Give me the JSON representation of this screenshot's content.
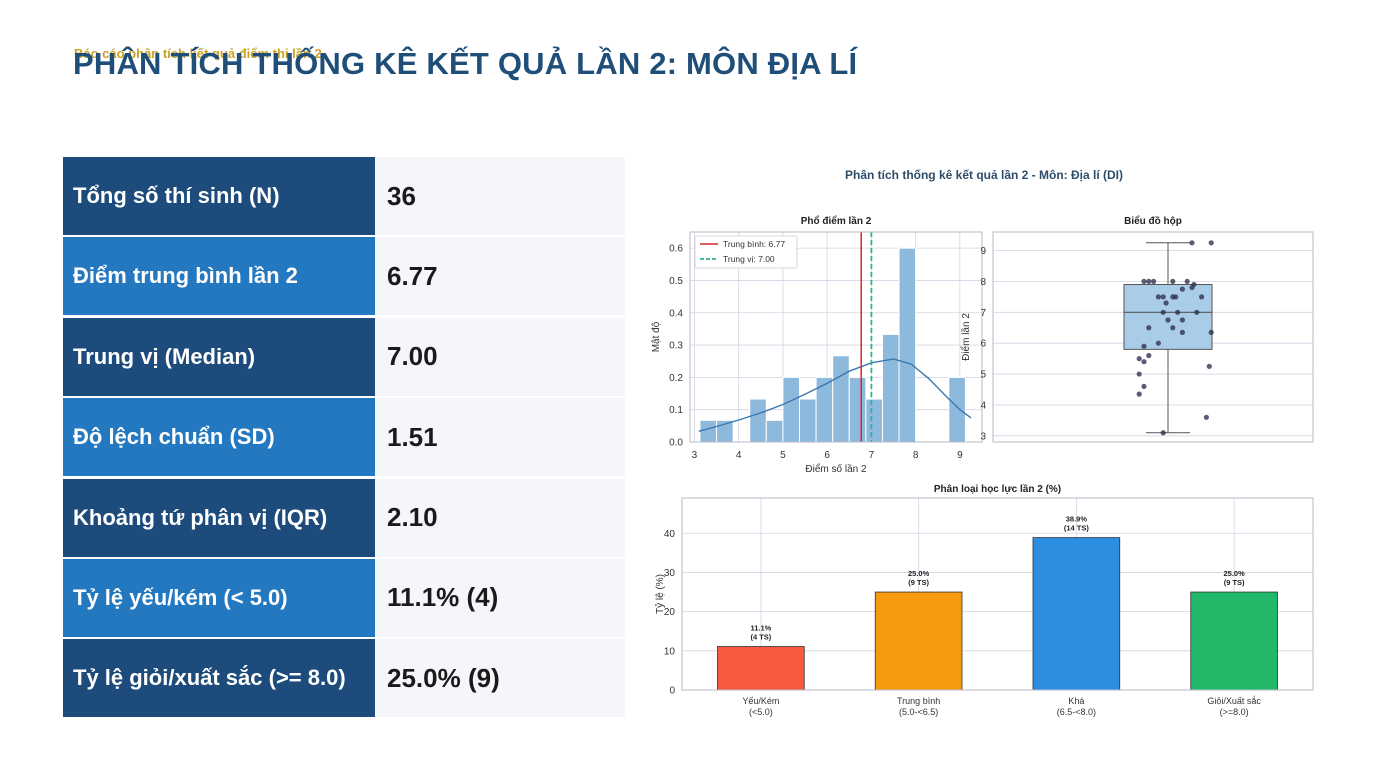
{
  "header": {
    "overtitle": "Báo cáo phân tích kết quả điểm thi lần 2",
    "title": "PHÂN TÍCH THỐNG KÊ KẾT QUẢ LẦN 2: MÔN ĐỊA LÍ"
  },
  "stats": [
    {
      "label": "Tổng số thí sinh (N)",
      "value": "36"
    },
    {
      "label": "Điểm trung bình lần 2",
      "value": "6.77"
    },
    {
      "label": "Trung vị (Median)",
      "value": "7.00"
    },
    {
      "label": "Độ lệch chuẩn (SD)",
      "value": "1.51"
    },
    {
      "label": "Khoảng tứ phân vị (IQR)",
      "value": "2.10"
    },
    {
      "label": "Tỷ lệ yếu/kém (< 5.0)",
      "value": "11.1% (4)"
    },
    {
      "label": "Tỷ lệ giỏi/xuất sắc (>= 8.0)",
      "value": "25.0% (9)"
    }
  ],
  "colors": {
    "dark_row": "#1d4c7c",
    "light_row": "#2478bf",
    "title": "#1f4e79",
    "hist": "#8db9dd",
    "kde": "#3a78b0",
    "mean": "#d62728",
    "median": "#2cb58f"
  },
  "chart_data": [
    {
      "type": "histogram",
      "figure_title": "Phân tích thống kê kết quả lần 2 - Môn: Địa lí (DI)",
      "title": "Phổ điểm lần 2",
      "xlabel": "Điểm số lần 2",
      "ylabel": "Mật độ",
      "xlim": [
        2.9,
        9.5
      ],
      "ylim": [
        0,
        0.65
      ],
      "xticks": [
        3,
        4,
        5,
        6,
        7,
        8,
        9
      ],
      "yticks": [
        0.0,
        0.1,
        0.2,
        0.3,
        0.4,
        0.5,
        0.6
      ],
      "bin_width": 0.375,
      "bins": [
        {
          "x0": 3.125,
          "d": 0.067
        },
        {
          "x0": 3.5,
          "d": 0.067
        },
        {
          "x0": 4.25,
          "d": 0.133
        },
        {
          "x0": 4.625,
          "d": 0.067
        },
        {
          "x0": 5.0,
          "d": 0.2
        },
        {
          "x0": 5.375,
          "d": 0.133
        },
        {
          "x0": 5.75,
          "d": 0.2
        },
        {
          "x0": 6.125,
          "d": 0.267
        },
        {
          "x0": 6.5,
          "d": 0.2
        },
        {
          "x0": 6.875,
          "d": 0.133
        },
        {
          "x0": 7.25,
          "d": 0.333
        },
        {
          "x0": 7.625,
          "d": 0.6
        },
        {
          "x0": 8.75,
          "d": 0.2
        }
      ],
      "kde": [
        [
          3.1,
          0.033
        ],
        [
          3.5,
          0.048
        ],
        [
          4.0,
          0.068
        ],
        [
          4.5,
          0.09
        ],
        [
          5.0,
          0.116
        ],
        [
          5.5,
          0.148
        ],
        [
          6.0,
          0.182
        ],
        [
          6.5,
          0.219
        ],
        [
          7.0,
          0.245
        ],
        [
          7.5,
          0.257
        ],
        [
          7.9,
          0.241
        ],
        [
          8.3,
          0.196
        ],
        [
          8.7,
          0.14
        ],
        [
          9.0,
          0.1
        ],
        [
          9.25,
          0.075
        ]
      ],
      "mean": 6.77,
      "median": 7.0,
      "legend": [
        "Trung bình: 6.77",
        "Trung vị: 7.00"
      ],
      "legend_position": "top-left"
    },
    {
      "type": "box",
      "title": "Biểu đồ hộp",
      "ylabel": "Điểm lần 2",
      "ylim": [
        2.8,
        9.6
      ],
      "yticks": [
        3,
        4,
        5,
        6,
        7,
        8,
        9
      ],
      "whisker_low": 3.1,
      "q1": 5.8,
      "median": 7.0,
      "q3": 7.9,
      "whisker_high": 9.25,
      "points": [
        [
          -0.25,
          8.0
        ],
        [
          -0.15,
          8.0
        ],
        [
          -0.2,
          8.0
        ],
        [
          0.05,
          8.0
        ],
        [
          0.2,
          8.0
        ],
        [
          0.27,
          7.9
        ],
        [
          0.25,
          7.8
        ],
        [
          0.15,
          7.75
        ],
        [
          -0.05,
          7.5
        ],
        [
          -0.1,
          7.5
        ],
        [
          0.08,
          7.5
        ],
        [
          0.05,
          7.5
        ],
        [
          -0.02,
          7.3
        ],
        [
          -0.05,
          7.0
        ],
        [
          0.1,
          7.0
        ],
        [
          0.3,
          7.0
        ],
        [
          0.0,
          6.75
        ],
        [
          0.15,
          6.75
        ],
        [
          -0.2,
          6.5
        ],
        [
          0.05,
          6.5
        ],
        [
          0.35,
          7.5
        ],
        [
          0.15,
          6.35
        ],
        [
          0.45,
          6.35
        ],
        [
          -0.1,
          6.0
        ],
        [
          -0.25,
          5.9
        ],
        [
          -0.3,
          5.5
        ],
        [
          -0.2,
          5.6
        ],
        [
          -0.25,
          5.4
        ],
        [
          0.43,
          5.25
        ],
        [
          -0.3,
          5.0
        ],
        [
          -0.25,
          4.6
        ],
        [
          -0.3,
          4.35
        ],
        [
          0.4,
          3.6
        ],
        [
          -0.05,
          3.1
        ],
        [
          0.25,
          9.25
        ],
        [
          0.45,
          9.25
        ]
      ]
    },
    {
      "type": "bar",
      "title": "Phân loại học lực lần 2 (%)",
      "ylabel": "Tỷ lệ (%)",
      "ylim": [
        0,
        49
      ],
      "yticks": [
        0,
        10,
        20,
        30,
        40
      ],
      "categories": [
        [
          "Yếu/Kém",
          "(<5.0)"
        ],
        [
          "Trung bình",
          "(5.0-<6.5)"
        ],
        [
          "Khá",
          "(6.5-<8.0)"
        ],
        [
          "Giỏi/Xuất sắc",
          "(>=8.0)"
        ]
      ],
      "values": [
        11.1,
        25.0,
        38.9,
        25.0
      ],
      "labels": [
        [
          "11.1%",
          "(4 TS)"
        ],
        [
          "25.0%",
          "(9 TS)"
        ],
        [
          "38.9%",
          "(14 TS)"
        ],
        [
          "25.0%",
          "(9 TS)"
        ]
      ],
      "colors": [
        "#f85a3e",
        "#f89a10",
        "#2b8ee0",
        "#22b86a"
      ]
    }
  ]
}
